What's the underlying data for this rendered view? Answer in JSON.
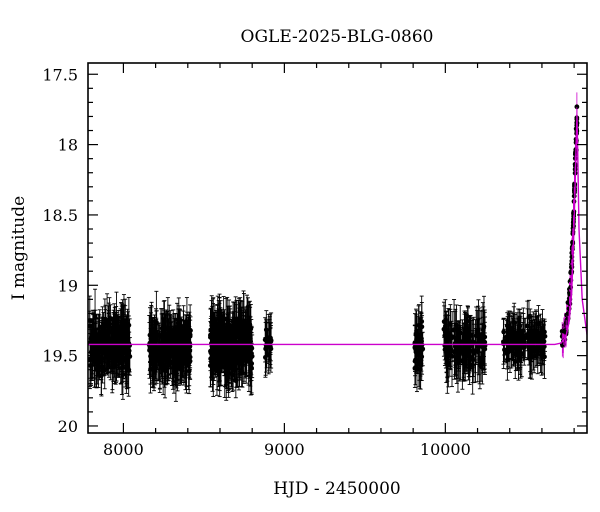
{
  "chart_data": {
    "type": "scatter",
    "title": "OGLE-2025-BLG-0860",
    "xlabel": "HJD - 2450000",
    "ylabel": "I magnitude",
    "xlim": [
      7780,
      10880
    ],
    "ylim": [
      20.05,
      17.42
    ],
    "y_inverted": true,
    "x_ticks": [
      8000,
      9000,
      10000
    ],
    "x_tick_labels": [
      "8000",
      "9000",
      "10000"
    ],
    "y_ticks": [
      17.5,
      18,
      18.5,
      19,
      19.5,
      20
    ],
    "y_tick_labels": [
      "17.5",
      "18",
      "18.5",
      "19",
      "19.5",
      "20"
    ],
    "grid": false,
    "legend": "none",
    "colors": {
      "data": "#000000",
      "model": "#cc00cc"
    },
    "baseline_mag": 19.42,
    "series": [
      {
        "kind": "points_with_errorbars",
        "segments": [
          {
            "x": [
              7790,
              8040
            ],
            "y_center": 19.43,
            "y_scatter": 0.14,
            "err": 0.15,
            "n": 260
          },
          {
            "x": [
              8160,
              8420
            ],
            "y_center": 19.44,
            "y_scatter": 0.13,
            "err": 0.16,
            "n": 240
          },
          {
            "x": [
              8540,
              8800
            ],
            "y_center": 19.43,
            "y_scatter": 0.14,
            "err": 0.16,
            "n": 300
          },
          {
            "x": [
              8880,
              8920
            ],
            "y_center": 19.41,
            "y_scatter": 0.08,
            "err": 0.14,
            "n": 20
          },
          {
            "x": [
              9810,
              9860
            ],
            "y_center": 19.45,
            "y_scatter": 0.13,
            "err": 0.15,
            "n": 40
          },
          {
            "x": [
              9990,
              10250
            ],
            "y_center": 19.43,
            "y_scatter": 0.12,
            "err": 0.16,
            "n": 140
          },
          {
            "x": [
              10360,
              10620
            ],
            "y_center": 19.41,
            "y_scatter": 0.1,
            "err": 0.13,
            "n": 150
          }
        ],
        "rise": [
          {
            "x": 10720,
            "y": 19.4
          },
          {
            "x": 10735,
            "y": 19.36
          },
          {
            "x": 10750,
            "y": 19.3
          },
          {
            "x": 10760,
            "y": 19.22
          },
          {
            "x": 10770,
            "y": 19.1
          },
          {
            "x": 10778,
            "y": 19.0
          },
          {
            "x": 10785,
            "y": 18.85
          },
          {
            "x": 10790,
            "y": 18.7
          },
          {
            "x": 10795,
            "y": 18.55
          },
          {
            "x": 10800,
            "y": 18.38
          },
          {
            "x": 10805,
            "y": 18.2
          },
          {
            "x": 10810,
            "y": 18.02
          },
          {
            "x": 10815,
            "y": 17.88
          },
          {
            "x": 10818,
            "y": 17.82
          }
        ]
      },
      {
        "kind": "model",
        "points": [
          {
            "x": 7780,
            "y": 19.42
          },
          {
            "x": 10680,
            "y": 19.42
          },
          {
            "x": 10720,
            "y": 19.41
          },
          {
            "x": 10750,
            "y": 19.36
          },
          {
            "x": 10770,
            "y": 19.25
          },
          {
            "x": 10785,
            "y": 19.05
          },
          {
            "x": 10795,
            "y": 18.75
          },
          {
            "x": 10805,
            "y": 18.35
          },
          {
            "x": 10812,
            "y": 18.0
          },
          {
            "x": 10818,
            "y": 17.8
          },
          {
            "x": 10822,
            "y": 18.05
          },
          {
            "x": 10830,
            "y": 18.6
          },
          {
            "x": 10850,
            "y": 19.1
          },
          {
            "x": 10880,
            "y": 19.35
          }
        ]
      }
    ]
  }
}
